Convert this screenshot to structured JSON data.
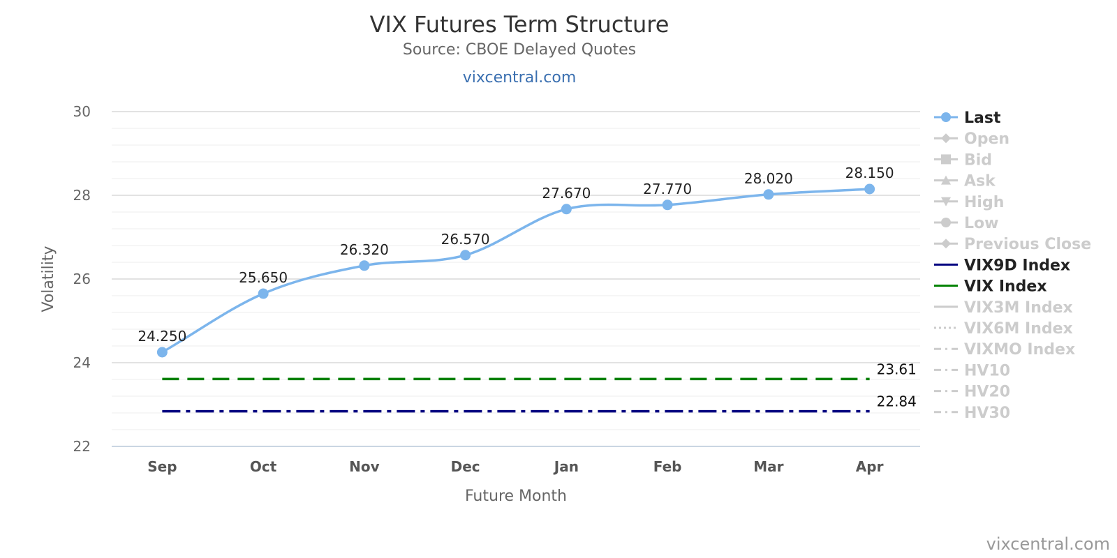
{
  "title": "VIX Futures Term Structure",
  "subtitle": "Source: CBOE Delayed Quotes",
  "source_link": "vixcentral.com",
  "credit": "vixcentral.com",
  "colors": {
    "last": "#7cb5ec",
    "vix9d": "#000080",
    "vix": "#008000",
    "grid": "#e0e0e0",
    "disabled": "#cccccc"
  },
  "chart_data": {
    "type": "line",
    "title": "VIX Futures Term Structure",
    "subtitle": "Source: CBOE Delayed Quotes",
    "xlabel": "Future Month",
    "ylabel": "Volatility",
    "categories": [
      "Sep",
      "Oct",
      "Nov",
      "Dec",
      "Jan",
      "Feb",
      "Mar",
      "Apr"
    ],
    "ylim": [
      22,
      30
    ],
    "yticks": [
      22,
      24,
      26,
      28,
      30
    ],
    "grid": true,
    "legend_position": "right",
    "series": [
      {
        "name": "Last",
        "values": [
          24.25,
          25.65,
          26.32,
          26.57,
          27.67,
          27.77,
          28.02,
          28.15
        ],
        "labels": [
          "24.250",
          "25.650",
          "26.320",
          "26.570",
          "27.670",
          "27.770",
          "28.020",
          "28.150"
        ],
        "visible": true,
        "style": "smooth-line-markers"
      },
      {
        "name": "VIX9D Index",
        "value": 22.84,
        "label": "22.84",
        "visible": true,
        "style": "dash-dot"
      },
      {
        "name": "VIX Index",
        "value": 23.61,
        "label": "23.61",
        "visible": true,
        "style": "dashed"
      }
    ],
    "legend": [
      {
        "name": "Last",
        "enabled": true,
        "symbol": "circle"
      },
      {
        "name": "Open",
        "enabled": false,
        "symbol": "diamond"
      },
      {
        "name": "Bid",
        "enabled": false,
        "symbol": "square"
      },
      {
        "name": "Ask",
        "enabled": false,
        "symbol": "triangle"
      },
      {
        "name": "High",
        "enabled": false,
        "symbol": "triangle-down"
      },
      {
        "name": "Low",
        "enabled": false,
        "symbol": "circle"
      },
      {
        "name": "Previous Close",
        "enabled": false,
        "symbol": "diamond"
      },
      {
        "name": "VIX9D Index",
        "enabled": true,
        "symbol": "line",
        "color": "#000080"
      },
      {
        "name": "VIX Index",
        "enabled": true,
        "symbol": "line",
        "color": "#008000"
      },
      {
        "name": "VIX3M Index",
        "enabled": false,
        "symbol": "line"
      },
      {
        "name": "VIX6M Index",
        "enabled": false,
        "symbol": "dotted"
      },
      {
        "name": "VIXMO Index",
        "enabled": false,
        "symbol": "dash-dot"
      },
      {
        "name": "HV10",
        "enabled": false,
        "symbol": "dash-dot"
      },
      {
        "name": "HV20",
        "enabled": false,
        "symbol": "dash-dot"
      },
      {
        "name": "HV30",
        "enabled": false,
        "symbol": "dash-dot"
      }
    ]
  }
}
